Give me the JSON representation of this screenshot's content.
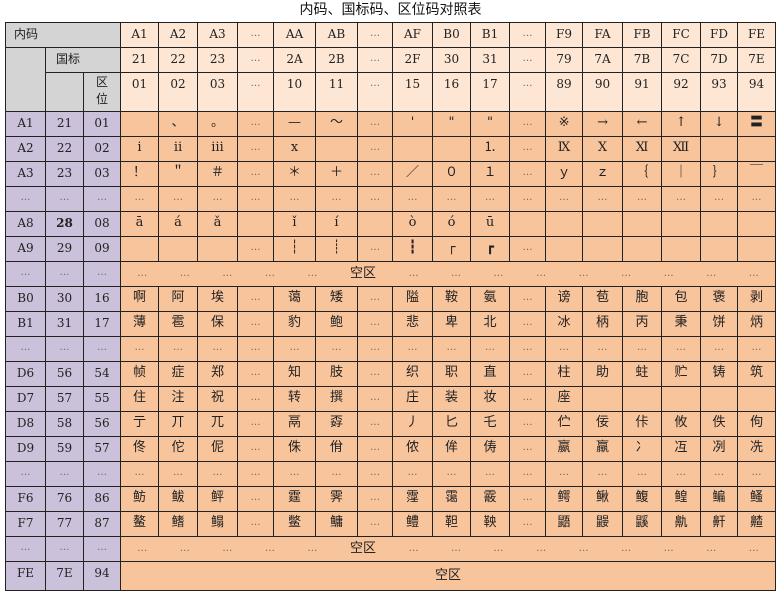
{
  "title": "内码、国标码、区位码对照表",
  "header": {
    "neima_label": "内码",
    "guobiao_label": "国标",
    "quwei_label": [
      "区",
      "位"
    ],
    "columns": [
      {
        "neima": "A1",
        "guobiao": "21",
        "quwei": "01"
      },
      {
        "neima": "A2",
        "guobiao": "22",
        "quwei": "02"
      },
      {
        "neima": "A3",
        "guobiao": "23",
        "quwei": "03"
      },
      {
        "neima": "…",
        "guobiao": "…",
        "quwei": "…"
      },
      {
        "neima": "AA",
        "guobiao": "2A",
        "quwei": "10"
      },
      {
        "neima": "AB",
        "guobiao": "2B",
        "quwei": "11"
      },
      {
        "neima": "…",
        "guobiao": "…",
        "quwei": "…"
      },
      {
        "neima": "AF",
        "guobiao": "2F",
        "quwei": "15"
      },
      {
        "neima": "B0",
        "guobiao": "30",
        "quwei": "16"
      },
      {
        "neima": "B1",
        "guobiao": "31",
        "quwei": "17"
      },
      {
        "neima": "…",
        "guobiao": "…",
        "quwei": "…"
      },
      {
        "neima": "F9",
        "guobiao": "79",
        "quwei": "89"
      },
      {
        "neima": "FA",
        "guobiao": "7A",
        "quwei": "90"
      },
      {
        "neima": "FB",
        "guobiao": "7B",
        "quwei": "91"
      },
      {
        "neima": "FC",
        "guobiao": "7C",
        "quwei": "92"
      },
      {
        "neima": "FD",
        "guobiao": "7D",
        "quwei": "93"
      },
      {
        "neima": "FE",
        "guobiao": "7E",
        "quwei": "94"
      }
    ]
  },
  "ellipsis": "…",
  "rows": [
    {
      "type": "data",
      "neima": "A1",
      "guobiao": "21",
      "quwei": "01",
      "cells": [
        "",
        "、",
        "。",
        "…",
        "—",
        "～",
        "…",
        "'",
        "\"",
        "\"",
        "…",
        "※",
        "→",
        "←",
        "↑",
        "↓",
        "〓"
      ]
    },
    {
      "type": "data",
      "neima": "A2",
      "guobiao": "22",
      "quwei": "02",
      "cells": [
        "ⅰ",
        "ⅱ",
        "ⅲ",
        "…",
        "ⅹ",
        "",
        "…",
        "",
        "",
        "⒈",
        "…",
        "Ⅸ",
        "Ⅹ",
        "Ⅺ",
        "Ⅻ",
        "",
        ""
      ]
    },
    {
      "type": "data",
      "neima": "A3",
      "guobiao": "23",
      "quwei": "03",
      "cells": [
        "！",
        "＂",
        "＃",
        "…",
        "＊",
        "＋",
        "…",
        "／",
        "０",
        "１",
        "…",
        "ｙ",
        "ｚ",
        "｛",
        "｜",
        "｝",
        "￣"
      ]
    },
    {
      "type": "data",
      "neima": "…",
      "guobiao": "…",
      "quwei": "…",
      "cells": [
        "…",
        "…",
        "…",
        "…",
        "…",
        "…",
        "…",
        "…",
        "…",
        "…",
        "…",
        "…",
        "…",
        "…",
        "…",
        "…",
        "…"
      ]
    },
    {
      "type": "data",
      "neima": "A8",
      "guobiao": "28",
      "quwei": "08",
      "guobiao_bold": true,
      "cells": [
        "ā",
        "á",
        "ǎ",
        "",
        "ǐ",
        "í",
        "",
        "ò",
        "ó",
        "ū",
        "",
        "",
        "",
        "",
        "",
        "",
        ""
      ]
    },
    {
      "type": "data",
      "neima": "A9",
      "guobiao": "29",
      "quwei": "09",
      "cells": [
        "",
        "",
        "",
        "…",
        "┆",
        "┊",
        "…",
        "┇",
        "┌",
        "┏",
        "…",
        "",
        "",
        "",
        "",
        "",
        ""
      ]
    },
    {
      "type": "zone",
      "neima": "…",
      "guobiao": "…",
      "quwei": "…",
      "label": "空区",
      "dots_before": 5,
      "dots_after": 9
    },
    {
      "type": "data",
      "neima": "B0",
      "guobiao": "30",
      "quwei": "16",
      "cells": [
        "啊",
        "阿",
        "埃",
        "…",
        "蔼",
        "矮",
        "…",
        "隘",
        "鞍",
        "氨",
        "…",
        "谤",
        "苞",
        "胞",
        "包",
        "褒",
        "剥"
      ]
    },
    {
      "type": "data",
      "neima": "B1",
      "guobiao": "31",
      "quwei": "17",
      "cells": [
        "薄",
        "雹",
        "保",
        "…",
        "豹",
        "鲍",
        "…",
        "悲",
        "卑",
        "北",
        "…",
        "冰",
        "柄",
        "丙",
        "秉",
        "饼",
        "炳"
      ]
    },
    {
      "type": "data",
      "neima": "…",
      "guobiao": "…",
      "quwei": "…",
      "cells": [
        "…",
        "…",
        "…",
        "…",
        "…",
        "…",
        "…",
        "…",
        "…",
        "…",
        "…",
        "…",
        "…",
        "…",
        "…",
        "…",
        "…"
      ]
    },
    {
      "type": "data",
      "neima": "D6",
      "guobiao": "56",
      "quwei": "54",
      "cells": [
        "帧",
        "症",
        "郑",
        "…",
        "知",
        "肢",
        "…",
        "织",
        "职",
        "直",
        "…",
        "柱",
        "助",
        "蛀",
        "贮",
        "铸",
        "筑"
      ]
    },
    {
      "type": "data",
      "neima": "D7",
      "guobiao": "57",
      "quwei": "55",
      "cells": [
        "住",
        "注",
        "祝",
        "…",
        "转",
        "撰",
        "…",
        "庄",
        "装",
        "妆",
        "…",
        "座",
        "",
        "",
        "",
        "",
        ""
      ]
    },
    {
      "type": "data",
      "neima": "D8",
      "guobiao": "58",
      "quwei": "56",
      "cells": [
        "亍",
        "丌",
        "兀",
        "…",
        "鬲",
        "孬",
        "…",
        "丿",
        "匕",
        "乇",
        "…",
        "伫",
        "佞",
        "佧",
        "攸",
        "佚",
        "佝"
      ]
    },
    {
      "type": "data",
      "neima": "D9",
      "guobiao": "59",
      "quwei": "57",
      "cells": [
        "佟",
        "佗",
        "伲",
        "…",
        "侏",
        "佾",
        "…",
        "侬",
        "侔",
        "俦",
        "…",
        "嬴",
        "羸",
        "冫",
        "冱",
        "冽",
        "冼"
      ]
    },
    {
      "type": "data",
      "neima": "…",
      "guobiao": "…",
      "quwei": "…",
      "cells": [
        "…",
        "…",
        "…",
        "…",
        "…",
        "…",
        "…",
        "…",
        "…",
        "…",
        "…",
        "…",
        "…",
        "…",
        "…",
        "…",
        "…"
      ]
    },
    {
      "type": "data",
      "neima": "F6",
      "guobiao": "76",
      "quwei": "86",
      "cells": [
        "鲂",
        "鲅",
        "鲆",
        "…",
        "霆",
        "霁",
        "…",
        "霪",
        "霭",
        "霰",
        "…",
        "鳄",
        "鳅",
        "鳆",
        "鳇",
        "鳊",
        "鳋"
      ]
    },
    {
      "type": "data",
      "neima": "F7",
      "guobiao": "77",
      "quwei": "87",
      "cells": [
        "鳌",
        "鳍",
        "鳎",
        "…",
        "鳖",
        "鳙",
        "…",
        "鳢",
        "靼",
        "鞅",
        "…",
        "鼯",
        "鼹",
        "鼷",
        "鼽",
        "鼾",
        "齄"
      ]
    },
    {
      "type": "zone",
      "neima": "…",
      "guobiao": "…",
      "quwei": "…",
      "label": "空区",
      "dots_before": 5,
      "dots_after": 9
    },
    {
      "type": "zone",
      "neima": "FE",
      "guobiao": "7E",
      "quwei": "94",
      "label": "空区",
      "dots_before": 0,
      "dots_after": 0
    }
  ],
  "colors": {
    "corner": "#d4d4d4",
    "header": "#fde6d4",
    "side": "#cbc1da",
    "data": "#f8c49c"
  }
}
